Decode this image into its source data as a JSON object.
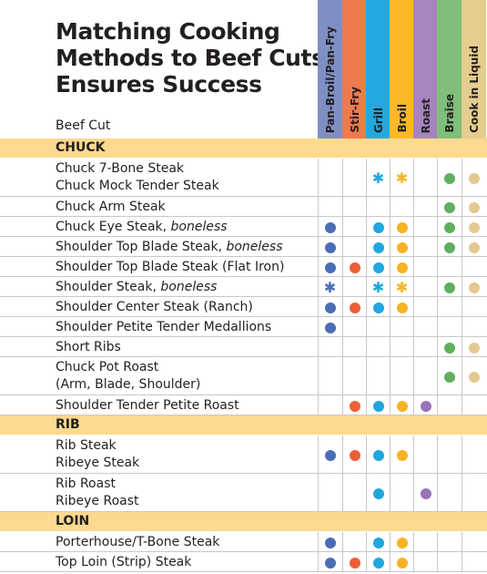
{
  "title_lines": [
    "Matching Cooking",
    "Methods to Beef Cuts",
    "Ensures Success"
  ],
  "beef_cut_label": "Beef Cut",
  "methods": [
    {
      "label": "Pan-Broil/Pan-Fry",
      "color": "#7f8fc4"
    },
    {
      "label": "Stir-Fry",
      "color": "#ee7a4d"
    },
    {
      "label": "Grill",
      "color": "#23a9e1"
    },
    {
      "label": "Broil",
      "color": "#fbb82b"
    },
    {
      "label": "Roast",
      "color": "#a784bd"
    },
    {
      "label": "Braise",
      "color": "#7fbf7a"
    },
    {
      "label": "Cook in Liquid",
      "color": "#e5cd8d"
    }
  ],
  "dot_colors": [
    "#4a6eb5",
    "#ee5f37",
    "#1fa7df",
    "#f7b322",
    "#9a72b8",
    "#5fb05d",
    "#e3c98e"
  ],
  "sections": [
    {
      "label": "CHUCK",
      "rows": [
        {
          "lines": [
            "Chuck 7-Bone Steak",
            "Chuck Mock Tender Steak"
          ],
          "marks": [
            "",
            "",
            "star",
            "star",
            "",
            "dot",
            "dot"
          ]
        },
        {
          "lines": [
            "Chuck Arm Steak"
          ],
          "marks": [
            "",
            "",
            "",
            "",
            "",
            "dot",
            "dot"
          ]
        },
        {
          "lines": [
            "Chuck Eye Steak, boneless"
          ],
          "marks": [
            "dot",
            "",
            "dot",
            "dot",
            "",
            "dot",
            "dot"
          ]
        },
        {
          "lines": [
            "Shoulder Top Blade Steak, boneless"
          ],
          "marks": [
            "dot",
            "",
            "dot",
            "dot",
            "",
            "dot",
            "dot"
          ]
        },
        {
          "lines": [
            "Shoulder Top Blade Steak (Flat Iron)"
          ],
          "marks": [
            "dot",
            "dot",
            "dot",
            "dot",
            "",
            "",
            ""
          ]
        },
        {
          "lines": [
            "Shoulder Steak, boneless"
          ],
          "marks": [
            "star",
            "",
            "star",
            "star",
            "",
            "dot",
            "dot"
          ]
        },
        {
          "lines": [
            "Shoulder Center Steak (Ranch)"
          ],
          "marks": [
            "dot",
            "dot",
            "dot",
            "dot",
            "",
            "",
            ""
          ]
        },
        {
          "lines": [
            "Shoulder Petite Tender Medallions"
          ],
          "marks": [
            "dot",
            "",
            "",
            "",
            "",
            "",
            ""
          ]
        },
        {
          "lines": [
            "Short Ribs"
          ],
          "marks": [
            "",
            "",
            "",
            "",
            "",
            "dot",
            "dot"
          ]
        },
        {
          "lines": [
            "Chuck Pot Roast",
            "(Arm, Blade, Shoulder)"
          ],
          "marks": [
            "",
            "",
            "",
            "",
            "",
            "dot",
            "dot"
          ]
        },
        {
          "lines": [
            "Shoulder Tender Petite Roast"
          ],
          "marks": [
            "",
            "dot",
            "dot",
            "dot",
            "dot",
            "",
            ""
          ]
        }
      ]
    },
    {
      "label": "RIB",
      "rows": [
        {
          "lines": [
            "Rib Steak",
            "Ribeye Steak"
          ],
          "marks": [
            "dot",
            "dot",
            "dot",
            "dot",
            "",
            "",
            ""
          ]
        },
        {
          "lines": [
            "Rib Roast",
            "Ribeye Roast"
          ],
          "marks": [
            "",
            "",
            "dot",
            "",
            "dot",
            "",
            ""
          ]
        }
      ]
    },
    {
      "label": "LOIN",
      "rows": [
        {
          "lines": [
            "Porterhouse/T-Bone Steak"
          ],
          "marks": [
            "dot",
            "",
            "dot",
            "dot",
            "",
            "",
            ""
          ]
        },
        {
          "lines": [
            "Top Loin (Strip) Steak"
          ],
          "marks": [
            "dot",
            "dot",
            "dot",
            "dot",
            "",
            "",
            ""
          ]
        }
      ]
    }
  ]
}
